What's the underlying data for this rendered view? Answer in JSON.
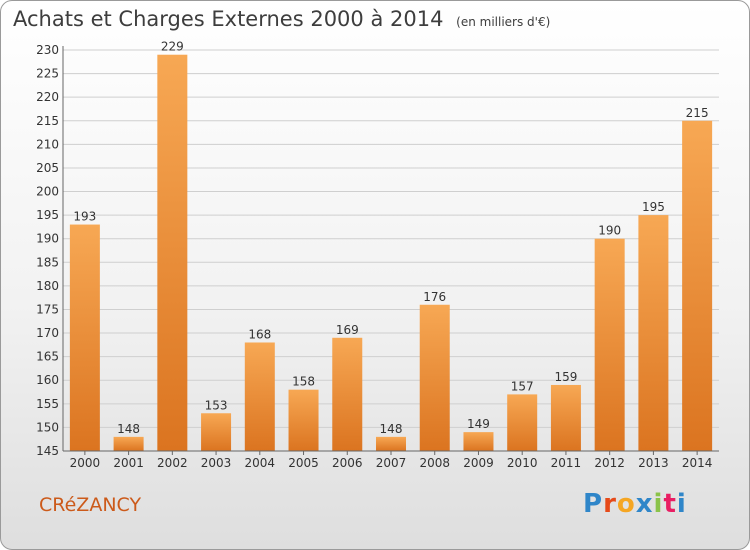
{
  "header": {
    "title": "Achats et Charges Externes 2000 à 2014",
    "subtitle": "(en milliers d'€)"
  },
  "footer": {
    "town": "CRéZANCY",
    "logo": "Proxiti",
    "logo_colors": [
      "#2f86c9",
      "#e64a19",
      "#f5a623",
      "#2f86c9",
      "#8bc34a",
      "#e91e63",
      "#2f86c9"
    ]
  },
  "colors": {
    "bar_top": "#f7a854",
    "bar_bottom": "#db7420",
    "grid": "#cfcfcf",
    "axis": "#666666",
    "text": "#333333"
  },
  "chart_data": {
    "type": "bar",
    "title": "Achats et Charges Externes 2000 à 2014",
    "categories": [
      "2000",
      "2001",
      "2002",
      "2003",
      "2004",
      "2005",
      "2006",
      "2007",
      "2008",
      "2009",
      "2010",
      "2011",
      "2012",
      "2013",
      "2014"
    ],
    "values": [
      193,
      148,
      229,
      153,
      168,
      158,
      169,
      148,
      176,
      149,
      157,
      159,
      190,
      195,
      215
    ],
    "ylim": [
      145,
      230
    ],
    "yticks": [
      145,
      150,
      155,
      160,
      165,
      170,
      175,
      180,
      185,
      190,
      195,
      200,
      205,
      210,
      215,
      220,
      225,
      230
    ],
    "grid": true,
    "xlabel": "",
    "ylabel": ""
  }
}
